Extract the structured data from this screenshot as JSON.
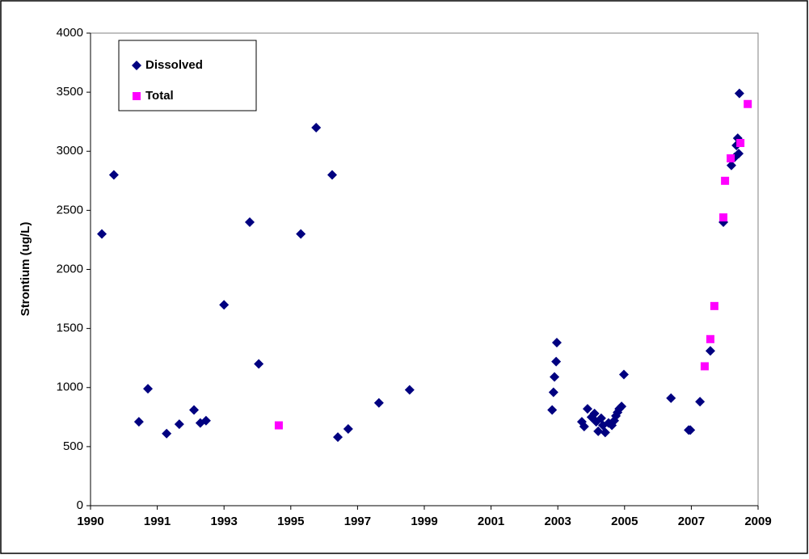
{
  "chart_data": {
    "type": "scatter",
    "y_label": "Strontium (ug/L)",
    "xlim": [
      1990,
      2010
    ],
    "xticks": [
      1990,
      {
        "value": 1992,
        "label": "1991"
      },
      {
        "value": 1994,
        "label": "1993"
      },
      {
        "value": 1996,
        "label": "1995"
      },
      {
        "value": 1998,
        "label": "1997"
      },
      {
        "value": 2000,
        "label": "1999"
      },
      {
        "value": 2002,
        "label": "2001"
      },
      {
        "value": 2004,
        "label": "2003"
      },
      {
        "value": 2006,
        "label": "2005"
      },
      {
        "value": 2008,
        "label": "2007"
      },
      {
        "value": 2010,
        "label": "2009"
      }
    ],
    "ylim": [
      0,
      4000
    ],
    "yticks": [
      0,
      500,
      1000,
      1500,
      2000,
      2500,
      3000,
      3500,
      4000
    ],
    "legend": "upper left",
    "series": [
      {
        "name": "Dissolved",
        "color": "#000080",
        "marker": "diamond",
        "x": [
          1990.34,
          1990.7,
          1991.45,
          1991.72,
          1992.28,
          1992.66,
          1993.1,
          1993.29,
          1993.46,
          1994.0,
          1994.77,
          1995.04,
          1996.3,
          1996.76,
          1997.24,
          1997.41,
          1997.72,
          1998.64,
          1999.56,
          2003.83,
          2003.87,
          2003.9,
          2003.95,
          2003.97,
          2004.72,
          2004.79,
          2004.89,
          2005.01,
          2005.1,
          2005.15,
          2005.21,
          2005.3,
          2005.35,
          2005.42,
          2005.52,
          2005.62,
          2005.69,
          2005.74,
          2005.79,
          2005.84,
          2005.91,
          2005.98,
          2007.39,
          2007.92,
          2007.97,
          2008.26,
          2008.57,
          2008.96,
          2009.2,
          2009.3,
          2009.35,
          2009.39,
          2009.42,
          2009.44
        ],
        "values": [
          2300,
          2800,
          710,
          990,
          610,
          690,
          810,
          700,
          720,
          1700,
          2400,
          1200,
          2300,
          3200,
          2800,
          580,
          650,
          870,
          980,
          810,
          960,
          1090,
          1220,
          1380,
          710,
          670,
          820,
          750,
          780,
          710,
          630,
          740,
          680,
          620,
          700,
          680,
          720,
          760,
          790,
          820,
          840,
          1110,
          910,
          640,
          640,
          880,
          1310,
          2400,
          2880,
          2950,
          3050,
          3110,
          2980,
          3490
        ]
      },
      {
        "name": "Total",
        "color": "#ff00ff",
        "marker": "square",
        "x": [
          1995.64,
          2008.4,
          2008.57,
          2008.69,
          2008.96,
          2009.01,
          2009.18,
          2009.47,
          2009.69
        ],
        "values": [
          680,
          1180,
          1410,
          1690,
          2440,
          2750,
          2940,
          3070,
          3400
        ]
      }
    ]
  }
}
